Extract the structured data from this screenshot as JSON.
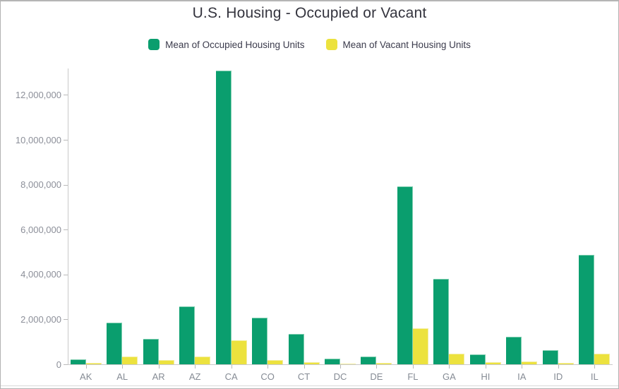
{
  "chart_data": {
    "type": "bar",
    "title": "U.S. Housing - Occupied or Vacant",
    "categories": [
      "AK",
      "AL",
      "AR",
      "AZ",
      "CA",
      "CO",
      "CT",
      "DC",
      "DE",
      "FL",
      "GA",
      "HI",
      "IA",
      "ID",
      "IL"
    ],
    "series": [
      {
        "name": "Mean of Occupied Housing Units",
        "color": "#0a9e6e",
        "edge_color": "#7fceb0",
        "values": [
          220000,
          1860000,
          1120000,
          2590000,
          13090000,
          2080000,
          1340000,
          260000,
          335000,
          7910000,
          3800000,
          440000,
          1230000,
          620000,
          4860000
        ]
      },
      {
        "name": "Mean of Vacant Housing Units",
        "color": "#ece23e",
        "edge_color": "#f3eda0",
        "values": [
          55000,
          340000,
          180000,
          350000,
          1060000,
          200000,
          110000,
          30000,
          55000,
          1590000,
          470000,
          80000,
          115000,
          65000,
          470000
        ]
      }
    ],
    "xlabel": "",
    "ylabel": "",
    "ylim": [
      0,
      13200000
    ],
    "yticks": [
      0,
      2000000,
      4000000,
      6000000,
      8000000,
      10000000,
      12000000
    ],
    "grid": false,
    "legend_position": "top-center",
    "colors": {
      "axis_line": "#c9c9c9",
      "tick_mark": "#b9b9b9",
      "y_tick_label": "#8c8f99",
      "x_tick_label": "#858b94",
      "title_text": "#34343e",
      "legend_text": "#3b3b4c"
    }
  }
}
